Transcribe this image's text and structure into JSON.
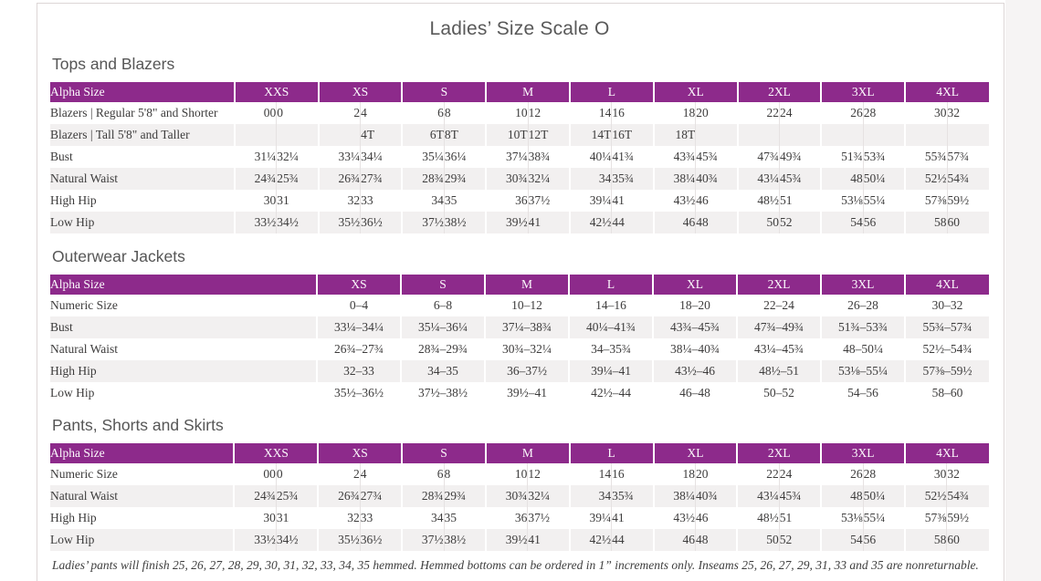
{
  "page": {
    "title": "Ladies’ Size Scale O",
    "footnote": "Ladies’ pants will finish 25, 26, 27, 28, 29, 30, 31, 32, 33, 34, 35 hemmed. Hemmed bottoms can be ordered in 1” increments only. Inseams 25, 26, 27, 29, 31, 33 and 35 are nonreturnable."
  },
  "colors": {
    "accent": "#8d2a8b",
    "alt_row": "#f2f0f0",
    "text": "#3d3c3c",
    "frame": "#ddd6d6"
  },
  "tables": [
    {
      "title": "Tops and Blazers",
      "header_label": "Alpha Size",
      "paired": true,
      "size_groups": [
        "XXS",
        "XS",
        "S",
        "M",
        "L",
        "XL",
        "2XL",
        "3XL",
        "4XL"
      ],
      "rows": [
        {
          "label": "Blazers | Regular 5'8\" and Shorter",
          "values": [
            "00",
            "0",
            "2",
            "4",
            "6",
            "8",
            "10",
            "12",
            "14",
            "16",
            "18",
            "20",
            "22",
            "24",
            "26",
            "28",
            "30",
            "32"
          ]
        },
        {
          "label": "Blazers | Tall 5'8\" and Taller",
          "values": [
            "",
            "",
            "",
            "4T",
            "6T",
            "8T",
            "10T",
            "12T",
            "14T",
            "16T",
            "18T",
            "",
            "",
            "",
            "",
            "",
            "",
            ""
          ]
        },
        {
          "label": "Bust",
          "values": [
            "31¼",
            "32¼",
            "33¼",
            "34¼",
            "35¼",
            "36¼",
            "37¼",
            "38¾",
            "40¼",
            "41¾",
            "43¾",
            "45¾",
            "47¾",
            "49¾",
            "51¾",
            "53¾",
            "55¾",
            "57¾"
          ]
        },
        {
          "label": "Natural Waist",
          "values": [
            "24¾",
            "25¾",
            "26¾",
            "27¾",
            "28¾",
            "29¾",
            "30¾",
            "32¼",
            "34",
            "35¾",
            "38¼",
            "40¾",
            "43¼",
            "45¾",
            "48",
            "50¼",
            "52½",
            "54¾"
          ]
        },
        {
          "label": "High Hip",
          "values": [
            "30",
            "31",
            "32",
            "33",
            "34",
            "35",
            "36",
            "37½",
            "39¼",
            "41",
            "43½",
            "46",
            "48½",
            "51",
            "53⅛",
            "55¼",
            "57⅜",
            "59½"
          ]
        },
        {
          "label": "Low Hip",
          "values": [
            "33½",
            "34½",
            "35½",
            "36½",
            "37½",
            "38½",
            "39½",
            "41",
            "42½",
            "44",
            "46",
            "48",
            "50",
            "52",
            "54",
            "56",
            "58",
            "60"
          ]
        }
      ]
    },
    {
      "title": "Outerwear Jackets",
      "header_label": "Alpha Size",
      "paired": false,
      "size_groups": [
        "XS",
        "S",
        "M",
        "L",
        "XL",
        "2XL",
        "3XL",
        "4XL"
      ],
      "rows": [
        {
          "label": "Numeric Size",
          "values": [
            "0–4",
            "6–8",
            "10–12",
            "14–16",
            "18–20",
            "22–24",
            "26–28",
            "30–32"
          ]
        },
        {
          "label": "Bust",
          "values": [
            "33¼–34¼",
            "35¼–36¼",
            "37¼–38¾",
            "40¼–41¾",
            "43¾–45¾",
            "47¾–49¾",
            "51¾–53¾",
            "55¾–57¾"
          ]
        },
        {
          "label": "Natural Waist",
          "values": [
            "26¾–27¾",
            "28¾–29¾",
            "30¾–32¼",
            "34–35¾",
            "38¼–40¾",
            "43¼–45¾",
            "48–50¼",
            "52½–54¾"
          ]
        },
        {
          "label": "High Hip",
          "values": [
            "32–33",
            "34–35",
            "36–37½",
            "39¼–41",
            "43½–46",
            "48½–51",
            "53⅛–55¼",
            "57⅜–59½"
          ]
        },
        {
          "label": "Low Hip",
          "values": [
            "35½–36½",
            "37½–38½",
            "39½–41",
            "42½–44",
            "46–48",
            "50–52",
            "54–56",
            "58–60"
          ]
        }
      ]
    },
    {
      "title": "Pants, Shorts and Skirts",
      "header_label": "Alpha Size",
      "paired": true,
      "size_groups": [
        "XXS",
        "XS",
        "S",
        "M",
        "L",
        "XL",
        "2XL",
        "3XL",
        "4XL"
      ],
      "rows": [
        {
          "label": "Numeric Size",
          "values": [
            "00",
            "0",
            "2",
            "4",
            "6",
            "8",
            "10",
            "12",
            "14",
            "16",
            "18",
            "20",
            "22",
            "24",
            "26",
            "28",
            "30",
            "32"
          ]
        },
        {
          "label": "Natural Waist",
          "values": [
            "24¾",
            "25¾",
            "26¾",
            "27¾",
            "28¾",
            "29¾",
            "30¾",
            "32¼",
            "34",
            "35¾",
            "38¼",
            "40¾",
            "43¼",
            "45¾",
            "48",
            "50¼",
            "52½",
            "54¾"
          ]
        },
        {
          "label": "High Hip",
          "values": [
            "30",
            "31",
            "32",
            "33",
            "34",
            "35",
            "36",
            "37½",
            "39¼",
            "41",
            "43½",
            "46",
            "48½",
            "51",
            "53⅛",
            "55¼",
            "57⅜",
            "59½"
          ]
        },
        {
          "label": "Low Hip",
          "values": [
            "33½",
            "34½",
            "35½",
            "36½",
            "37½",
            "38½",
            "39½",
            "41",
            "42½",
            "44",
            "46",
            "48",
            "50",
            "52",
            "54",
            "56",
            "58",
            "60"
          ]
        }
      ]
    }
  ]
}
